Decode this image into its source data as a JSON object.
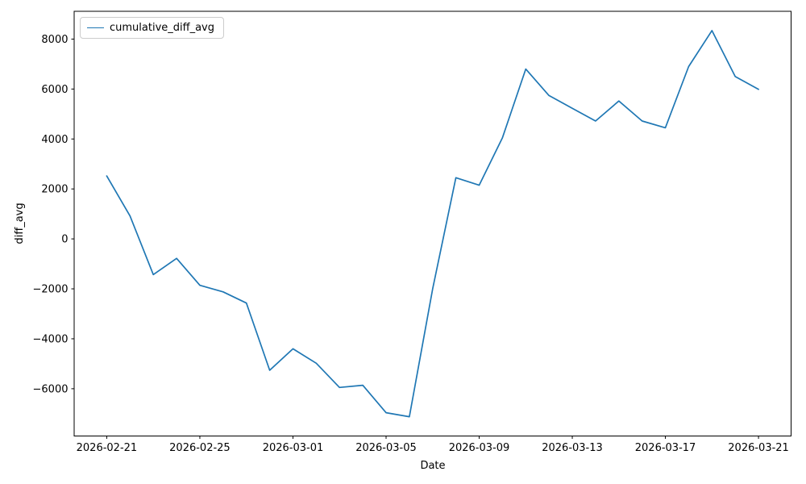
{
  "chart_data": {
    "type": "line",
    "xlabel": "Date",
    "ylabel": "diff_avg",
    "grid": false,
    "legend_position": "upper left",
    "line_color": "#1f77b4",
    "x": [
      "2026-02-21",
      "2026-02-22",
      "2026-02-23",
      "2026-02-24",
      "2026-02-25",
      "2026-02-26",
      "2026-02-27",
      "2026-02-28",
      "2026-03-01",
      "2026-03-02",
      "2026-03-03",
      "2026-03-04",
      "2026-03-05",
      "2026-03-06",
      "2026-03-07",
      "2026-03-08",
      "2026-03-09",
      "2026-03-10",
      "2026-03-11",
      "2026-03-12",
      "2026-03-13",
      "2026-03-14",
      "2026-03-15",
      "2026-03-16",
      "2026-03-17",
      "2026-03-18",
      "2026-03-19",
      "2026-03-20",
      "2026-03-21"
    ],
    "series": [
      {
        "name": "cumulative_diff_avg",
        "values": [
          2520,
          920,
          -1430,
          -780,
          -1860,
          -2120,
          -2570,
          -5260,
          -4400,
          -4980,
          -5950,
          -5860,
          -6960,
          -7120,
          -2000,
          2450,
          2150,
          4050,
          6800,
          5740,
          5230,
          4720,
          5520,
          4720,
          4450,
          6900,
          8340,
          6500,
          5990
        ]
      }
    ],
    "xtick_indices": [
      0,
      4,
      8,
      12,
      16,
      20,
      24,
      28
    ],
    "xtick_labels": [
      "2026-02-21",
      "2026-02-25",
      "2026-03-01",
      "2026-03-05",
      "2026-03-09",
      "2026-03-13",
      "2026-03-17",
      "2026-03-21"
    ],
    "ytick_values": [
      8000,
      6000,
      4000,
      2000,
      0,
      -2000,
      -4000,
      -6000
    ],
    "ytick_labels": [
      "8000",
      "6000",
      "4000",
      "2000",
      "0",
      "−2000",
      "−4000",
      "−6000"
    ],
    "xlim_index": [
      -1.4,
      29.4
    ],
    "ylim": [
      -7893,
      9113
    ]
  }
}
